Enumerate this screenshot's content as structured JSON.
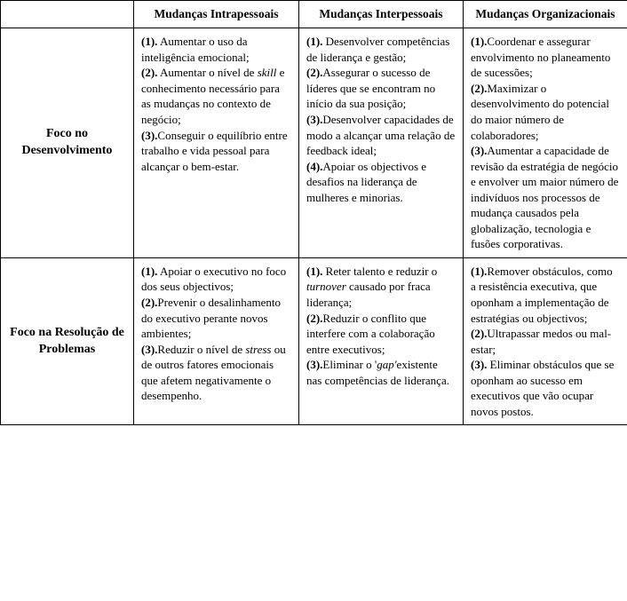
{
  "table": {
    "columns": [
      "",
      "Mudanças Intrapessoais",
      "Mudanças Interpessoais",
      "Mudanças Organizacionais"
    ],
    "rows": [
      {
        "label": "Foco no Desenvolvimento",
        "cells": {
          "intra": {
            "b1": "(1).",
            "t1a": " Aumentar o uso da inteligência emocional;",
            "b2": "(2).",
            "t2a": " Aumentar o nível de ",
            "t2b_it": "skill",
            "t2c": " e conhecimento necessário para as mudanças no contexto de negócio;",
            "b3": "(3).",
            "t3a": "Conseguir o equilíbrio entre trabalho e vida pessoal para alcançar o bem-estar."
          },
          "inter": {
            "b1": "(1).",
            "t1a": " Desenvolver competências de liderança e gestão;",
            "b2": "(2).",
            "t2a": "Assegurar o sucesso de líderes que se encontram no início da sua posição;",
            "b3": "(3).",
            "t3a": "Desenvolver capacidades de modo a alcançar uma relação de feedback ideal;",
            "b4": "(4).",
            "t4a": "Apoiar os objectivos e desafios na liderança de mulheres e minorias."
          },
          "org": {
            "b1": "(1).",
            "t1a": "Coordenar e assegurar envolvimento no planeamento de sucessões;",
            "b2": "(2).",
            "t2a": "Maximizar o desenvolvimento do potencial do maior número de colaboradores;",
            "b3": "(3).",
            "t3a": "Aumentar a capacidade de revisão da estratégia de negócio e envolver um maior número de indivíduos nos processos de mudança causados pela globalização, tecnologia e fusões corporativas."
          }
        }
      },
      {
        "label": "Foco na Resolução de Problemas",
        "cells": {
          "intra": {
            "b1": "(1).",
            "t1a": " Apoiar o executivo no foco dos seus objectivos;",
            "b2": "(2).",
            "t2a": "Prevenir o desalinhamento do executivo perante novos ambientes;",
            "b3": "(3).",
            "t3a": "Reduzir o nível de ",
            "t3b_it": "stress",
            "t3c": " ou de outros fatores emocionais que afetem negativamente o desempenho."
          },
          "inter": {
            "b1": "(1).",
            "t1a": " Reter talento e reduzir o ",
            "t1b_it": "turnover",
            "t1c": " causado por fraca liderança;",
            "b2": "(2).",
            "t2a": "Reduzir o conflito que interfere com a colaboração entre executivos;",
            "b3": "(3).",
            "t3a": "Eliminar o '",
            "t3b_it": "gap'",
            "t3c": "existente nas competências de liderança."
          },
          "org": {
            "b1": "(1).",
            "t1a": "Remover obstáculos, como a resistência executiva, que oponham a implementação de estratégias ou objectivos;",
            "b2": "(2).",
            "t2a": "Ultrapassar medos ou mal-estar;",
            "b3": "(3).",
            "t3a": " Eliminar obstáculos que se oponham ao sucesso em executivos que vão ocupar novos postos."
          }
        }
      }
    ],
    "colors": {
      "border": "#000000",
      "background": "#ffffff",
      "text": "#000000"
    },
    "font_family": "Times New Roman",
    "cell_fontsize": 13,
    "header_fontsize": 13.5,
    "rowlabel_fontsize": 14
  }
}
